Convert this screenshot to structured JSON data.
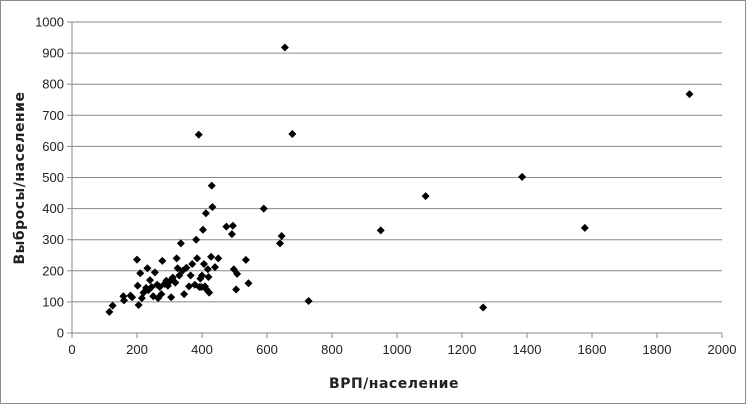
{
  "chart_data": {
    "type": "scatter",
    "title": "",
    "xlabel": "ВРП/население",
    "ylabel": "Выбросы/население",
    "xlim": [
      0,
      2000
    ],
    "ylim": [
      0,
      1000
    ],
    "x_ticks": [
      "0",
      "200",
      "400",
      "600",
      "800",
      "1000",
      "1200",
      "1400",
      "1600",
      "1800",
      "2000"
    ],
    "y_ticks": [
      "0",
      "100",
      "200",
      "300",
      "400",
      "500",
      "600",
      "700",
      "800",
      "900",
      "1000"
    ],
    "grid": "horizontal",
    "legend": "none",
    "marker": "diamond",
    "marker_color": "#000000",
    "series": [
      {
        "points": [
          [
            115,
            68
          ],
          [
            125,
            88
          ],
          [
            158,
            118
          ],
          [
            160,
            105
          ],
          [
            180,
            120
          ],
          [
            185,
            115
          ],
          [
            200,
            236
          ],
          [
            202,
            152
          ],
          [
            205,
            90
          ],
          [
            210,
            192
          ],
          [
            215,
            112
          ],
          [
            220,
            130
          ],
          [
            228,
            145
          ],
          [
            232,
            208
          ],
          [
            235,
            138
          ],
          [
            240,
            170
          ],
          [
            245,
            148
          ],
          [
            250,
            118
          ],
          [
            255,
            195
          ],
          [
            262,
            155
          ],
          [
            265,
            112
          ],
          [
            270,
            148
          ],
          [
            275,
            125
          ],
          [
            278,
            232
          ],
          [
            285,
            158
          ],
          [
            290,
            168
          ],
          [
            295,
            152
          ],
          [
            300,
            165
          ],
          [
            305,
            115
          ],
          [
            310,
            178
          ],
          [
            318,
            162
          ],
          [
            322,
            240
          ],
          [
            325,
            208
          ],
          [
            330,
            185
          ],
          [
            335,
            288
          ],
          [
            340,
            200
          ],
          [
            345,
            125
          ],
          [
            352,
            210
          ],
          [
            360,
            150
          ],
          [
            365,
            185
          ],
          [
            370,
            222
          ],
          [
            378,
            155
          ],
          [
            382,
            300
          ],
          [
            385,
            240
          ],
          [
            390,
            638
          ],
          [
            392,
            148
          ],
          [
            395,
            175
          ],
          [
            398,
            148
          ],
          [
            400,
            185
          ],
          [
            403,
            332
          ],
          [
            406,
            222
          ],
          [
            409,
            150
          ],
          [
            412,
            385
          ],
          [
            414,
            140
          ],
          [
            418,
            205
          ],
          [
            420,
            180
          ],
          [
            422,
            130
          ],
          [
            428,
            245
          ],
          [
            430,
            474
          ],
          [
            432,
            405
          ],
          [
            440,
            212
          ],
          [
            450,
            240
          ],
          [
            475,
            342
          ],
          [
            492,
            318
          ],
          [
            495,
            345
          ],
          [
            498,
            205
          ],
          [
            505,
            140
          ],
          [
            508,
            190
          ],
          [
            535,
            235
          ],
          [
            543,
            160
          ],
          [
            590,
            400
          ],
          [
            640,
            288
          ],
          [
            645,
            312
          ],
          [
            655,
            918
          ],
          [
            678,
            640
          ],
          [
            728,
            103
          ],
          [
            950,
            330
          ],
          [
            1088,
            440
          ],
          [
            1265,
            82
          ],
          [
            1385,
            502
          ],
          [
            1578,
            338
          ],
          [
            1900,
            768
          ]
        ]
      }
    ]
  }
}
